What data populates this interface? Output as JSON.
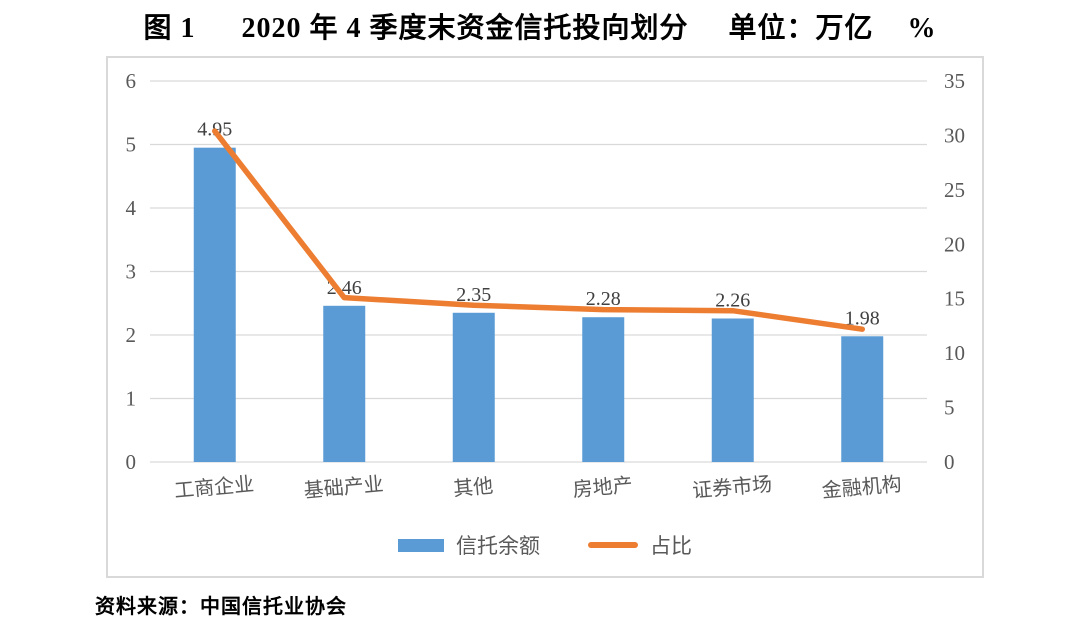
{
  "title": {
    "parts": [
      "图 1",
      "2020 年 4 季度末资金信托投向划分",
      "单位：万亿",
      "%"
    ]
  },
  "source_note": "资料来源：中国信托业协会",
  "chart_data": {
    "type": "bar",
    "subtype": "bar+line dual axis",
    "categories": [
      "工商企业",
      "基础产业",
      "其他",
      "房地产",
      "证券市场",
      "金融机构"
    ],
    "series": [
      {
        "name": "信托余额",
        "kind": "bar",
        "axis": "left",
        "values": [
          4.95,
          2.46,
          2.35,
          2.28,
          2.26,
          1.98
        ],
        "labels": [
          "4.95",
          "2.46",
          "2.35",
          "2.28",
          "2.26",
          "1.98"
        ],
        "color": "#5B9BD5"
      },
      {
        "name": "占比",
        "kind": "line",
        "axis": "right",
        "values": [
          30.4,
          15.1,
          14.4,
          14.0,
          13.9,
          12.2
        ],
        "color": "#ED7D31"
      }
    ],
    "left_axis": {
      "min": 0,
      "max": 6,
      "step": 1,
      "ticks": [
        "0",
        "1",
        "2",
        "3",
        "4",
        "5",
        "6"
      ]
    },
    "right_axis": {
      "min": 0,
      "max": 35,
      "step": 5,
      "ticks": [
        "0",
        "5",
        "10",
        "15",
        "20",
        "25",
        "30",
        "35"
      ]
    },
    "grid": true,
    "legend_position": "bottom"
  },
  "colors": {
    "grid": "#d9d9d9",
    "frame": "#d9d9d9",
    "tick_text": "#595959",
    "category_text": "#595959",
    "value_label_text": "#404040",
    "background": "#ffffff"
  }
}
